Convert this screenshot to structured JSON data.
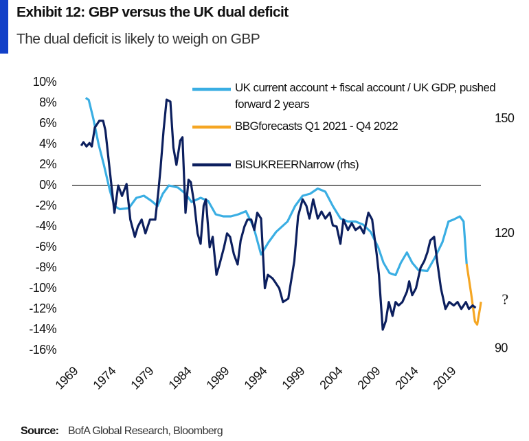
{
  "chart_data": {
    "type": "line",
    "title": "Exhibit 12: GBP versus the UK dual deficit",
    "subtitle": "The dual deficit is likely to weigh on GBP",
    "annotation": "?",
    "source_label": "Source:",
    "source": "BofA Global Research, Bloomberg",
    "xlim": [
      1969,
      2023.5
    ],
    "xticks": [
      1969,
      1974,
      1979,
      1984,
      1989,
      1994,
      1999,
      2004,
      2009,
      2014,
      2019
    ],
    "ylim": [
      -16,
      10
    ],
    "yticks": [
      {
        "value": 10,
        "label": "10%"
      },
      {
        "value": 8,
        "label": "8%"
      },
      {
        "value": 6,
        "label": "6%"
      },
      {
        "value": 4,
        "label": "4%"
      },
      {
        "value": 2,
        "label": "2%"
      },
      {
        "value": 0,
        "label": "0%"
      },
      {
        "value": -2,
        "label": "-2%"
      },
      {
        "value": -4,
        "label": "-4%"
      },
      {
        "value": -6,
        "label": "-6%"
      },
      {
        "value": -8,
        "label": "-8%"
      },
      {
        "value": -10,
        "label": "-10%"
      },
      {
        "value": -12,
        "label": "-12%"
      },
      {
        "value": -14,
        "label": "-14%"
      },
      {
        "value": -16,
        "label": "-16%"
      }
    ],
    "y2lim": [
      89.6,
      159.5
    ],
    "y2ticks": [
      90,
      120,
      150
    ],
    "series": [
      {
        "name": "UK current account + fiscal account / UK GDP, pushed forward 2 years",
        "color": "#3aaee3",
        "x": [
          1970.8,
          1971.2,
          1971.8,
          1972.5,
          1973.2,
          1974,
          1974.6,
          1975.3,
          1976.5,
          1977.5,
          1978.5,
          1979.5,
          1980.3,
          1981,
          1981.8,
          1983,
          1984,
          1984.8,
          1986,
          1987,
          1988,
          1989,
          1990,
          1991,
          1992,
          1993,
          1994,
          1995,
          1996,
          1997.5,
          1998.5,
          1999.5,
          2000.5,
          2001.5,
          2002.5,
          2003.5,
          2004.5,
          2005.5,
          2006.5,
          2007.5,
          2008.5,
          2009.5,
          2010.2,
          2011,
          2011.8,
          2012.5,
          2013.3,
          2014,
          2014.8,
          2016,
          2017,
          2018,
          2018.8,
          2019.5,
          2020.3,
          2020.8,
          2021.2
        ],
        "values": [
          8.5,
          8.3,
          6.5,
          4,
          2,
          -0.5,
          -2,
          -2.3,
          -2.2,
          -1.2,
          -1,
          -1.5,
          -2,
          -0.8,
          0,
          -0.2,
          -0.8,
          -1.6,
          -1.2,
          -1.5,
          -2.8,
          -3,
          -3,
          -2.8,
          -2.5,
          -4,
          -6.7,
          -5.5,
          -4.5,
          -3.5,
          -2,
          -1,
          -0.8,
          -0.3,
          -0.6,
          -2,
          -3.2,
          -3.5,
          -3.5,
          -3.8,
          -4.5,
          -6,
          -7.5,
          -8.5,
          -8.7,
          -7.5,
          -6.5,
          -7.5,
          -8.2,
          -8.3,
          -7,
          -5.5,
          -3.5,
          -3.3,
          -3,
          -3.5,
          -7.6
        ]
      },
      {
        "name": "BBGforecasts Q1 2021 - Q4 2022",
        "color": "#f5a623",
        "x": [
          2021.2,
          2021.8,
          2022.3,
          2022.6,
          2023,
          2023.1
        ],
        "values": [
          -7.6,
          -10.5,
          -13.2,
          -13.5,
          -11.8,
          -11.3
        ]
      },
      {
        "name": "BISUKREERNarrow  (rhs)",
        "color": "#0c1f5e",
        "axis": "y2",
        "x": [
          1970.2,
          1970.5,
          1970.9,
          1971.3,
          1971.6,
          1972.0,
          1972.6,
          1973.1,
          1973.4,
          1974.0,
          1974.6,
          1975.1,
          1975.6,
          1976.2,
          1976.7,
          1977.3,
          1977.7,
          1978.2,
          1978.7,
          1979.3,
          1980.0,
          1980.4,
          1980.7,
          1981.1,
          1981.5,
          1982.0,
          1982.4,
          1982.8,
          1983.3,
          1983.6,
          1984.0,
          1984.4,
          1984.7,
          1985.2,
          1985.6,
          1986.0,
          1986.4,
          1986.7,
          1987.2,
          1987.6,
          1988.1,
          1988.5,
          1989.1,
          1989.5,
          1989.9,
          1990.4,
          1990.9,
          1991.3,
          1991.8,
          1992.2,
          1992.7,
          1993.1,
          1993.5,
          1994.0,
          1994.5,
          1994.9,
          1995.5,
          1995.8,
          1996.4,
          1996.9,
          1997.6,
          1998.4,
          1998.9,
          1999.5,
          2000.0,
          2000.4,
          2000.9,
          2001.5,
          2002.0,
          2002.5,
          2003.1,
          2003.5,
          2004.0,
          2004.5,
          2004.9,
          2005.5,
          2006.0,
          2006.5,
          2007.1,
          2007.6,
          2008.2,
          2008.7,
          2009.3,
          2009.6,
          2010.1,
          2010.5,
          2010.9,
          2011.4,
          2011.8,
          2012.2,
          2012.7,
          2013.3,
          2013.6,
          2014.0,
          2014.5,
          2015.1,
          2015.6,
          2016.0,
          2016.4,
          2016.9,
          2017.3,
          2017.8,
          2018.4,
          2018.9,
          2019.5,
          2020.0,
          2020.5,
          2021.1,
          2021.5,
          2022.0,
          2022.4
        ],
        "values": [
          143.0,
          143.9,
          142.8,
          143.7,
          142.8,
          147.7,
          149.5,
          149.5,
          147.0,
          136.2,
          125.5,
          132.6,
          129.9,
          133.0,
          123.7,
          119.2,
          121.9,
          123.7,
          120.1,
          123.7,
          123.7,
          130.8,
          137.1,
          147.0,
          155.0,
          154.5,
          142.5,
          138.0,
          144.3,
          145.2,
          125.5,
          134.1,
          133.5,
          127.3,
          120.1,
          117.4,
          127.3,
          129.0,
          116.5,
          119.2,
          109.3,
          112.0,
          116.5,
          120.1,
          119.2,
          114.7,
          112.0,
          118.3,
          121.9,
          123.7,
          123.7,
          121.0,
          125.5,
          124.0,
          105.8,
          109.3,
          108.4,
          107.6,
          105.8,
          102.2,
          103.1,
          112.9,
          124.6,
          129.0,
          127.3,
          124.0,
          129.0,
          124.0,
          125.8,
          124.0,
          125.5,
          122.2,
          121.9,
          117.4,
          123.7,
          121.0,
          122.8,
          121.0,
          121.9,
          120.1,
          125.5,
          123.7,
          114.7,
          109.3,
          95.0,
          97.2,
          102.2,
          98.6,
          102.2,
          101.3,
          102.2,
          104.9,
          107.6,
          104.0,
          105.8,
          111.1,
          112.9,
          115.1,
          118.3,
          119.2,
          112.9,
          105.8,
          100.4,
          102.2,
          101.3,
          102.2,
          100.4,
          102.2,
          100.4,
          101.3,
          100.7
        ]
      }
    ]
  }
}
